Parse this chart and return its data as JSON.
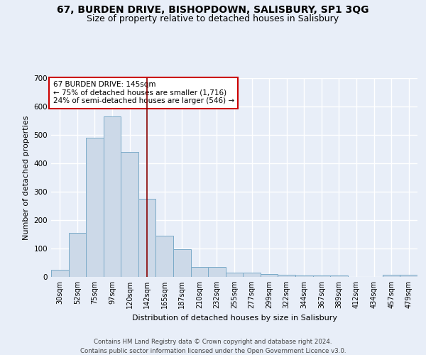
{
  "title": "67, BURDEN DRIVE, BISHOPDOWN, SALISBURY, SP1 3QG",
  "subtitle": "Size of property relative to detached houses in Salisbury",
  "xlabel": "Distribution of detached houses by size in Salisbury",
  "ylabel": "Number of detached properties",
  "categories": [
    "30sqm",
    "52sqm",
    "75sqm",
    "97sqm",
    "120sqm",
    "142sqm",
    "165sqm",
    "187sqm",
    "210sqm",
    "232sqm",
    "255sqm",
    "277sqm",
    "299sqm",
    "322sqm",
    "344sqm",
    "367sqm",
    "389sqm",
    "412sqm",
    "434sqm",
    "457sqm",
    "479sqm"
  ],
  "values": [
    25,
    155,
    490,
    565,
    440,
    275,
    145,
    97,
    35,
    35,
    14,
    14,
    11,
    8,
    6,
    5,
    5,
    0,
    0,
    7,
    7
  ],
  "bar_color": "#ccd9e8",
  "bar_edge_color": "#7aaac8",
  "vline_x": 5.5,
  "vline_color": "#880000",
  "annotation_text": "67 BURDEN DRIVE: 145sqm\n← 75% of detached houses are smaller (1,716)\n24% of semi-detached houses are larger (546) →",
  "annotation_box_color": "#ffffff",
  "annotation_box_edge": "#cc0000",
  "ylim": [
    0,
    700
  ],
  "yticks": [
    0,
    100,
    200,
    300,
    400,
    500,
    600,
    700
  ],
  "background_color": "#e8eef8",
  "grid_color": "#ffffff",
  "footer_line1": "Contains HM Land Registry data © Crown copyright and database right 2024.",
  "footer_line2": "Contains public sector information licensed under the Open Government Licence v3.0.",
  "title_fontsize": 10,
  "subtitle_fontsize": 9,
  "xlabel_fontsize": 8,
  "ylabel_fontsize": 8
}
